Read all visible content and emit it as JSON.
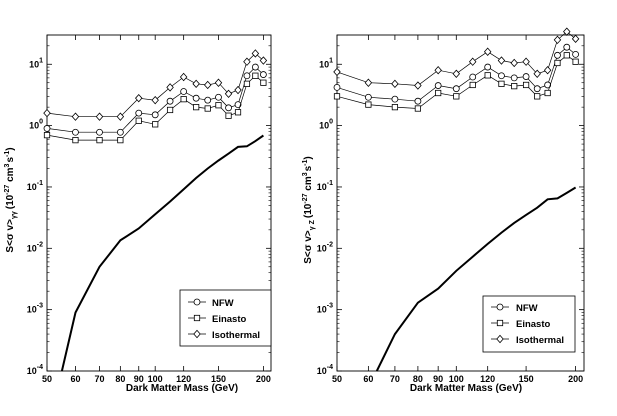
{
  "chart_data": [
    {
      "type": "line",
      "title": "",
      "xlabel": "Dark Matter Mass (GeV)",
      "ylabel": "S<σ v>γγ (10^-27 cm^3 s^-1)",
      "ylabel_parts": {
        "pre": "S",
        "sym": "<σ v>",
        "sub": "γγ",
        "unit_a": "(10",
        "unit_exp1": "-27",
        "unit_b": " cm",
        "unit_exp2": "3",
        "unit_c": "s",
        "unit_exp3": "-1",
        "unit_d": ")"
      },
      "x_scale": "log",
      "y_scale": "log",
      "xlim": [
        50,
        210
      ],
      "ylim": [
        0.0001,
        30
      ],
      "x_ticks": [
        50,
        60,
        70,
        80,
        90,
        100,
        120,
        150,
        200
      ],
      "x_tick_labels": [
        "50",
        "60",
        "70",
        "80",
        "90",
        "100",
        "120",
        "150",
        "200"
      ],
      "y_ticks": [
        0.0001,
        0.001,
        0.01,
        0.1,
        1,
        10
      ],
      "y_tick_exponents": [
        "-4",
        "-3",
        "-2",
        "-1",
        "0",
        "1"
      ],
      "legend": {
        "position": "bottom-right",
        "entries": [
          {
            "label": "NFW",
            "marker": "circle"
          },
          {
            "label": "Einasto",
            "marker": "square"
          },
          {
            "label": "Isothermal",
            "marker": "diamond"
          }
        ]
      },
      "series": [
        {
          "name": "Sensitivity",
          "marker": "none",
          "x": [
            55,
            60,
            70,
            80,
            90,
            100,
            110,
            120,
            130,
            140,
            150,
            160,
            170,
            180,
            190,
            200
          ],
          "y": [
            0.0001,
            0.0009,
            0.005,
            0.0135,
            0.021,
            0.036,
            0.058,
            0.092,
            0.14,
            0.2,
            0.27,
            0.35,
            0.45,
            0.46,
            0.56,
            0.69
          ]
        },
        {
          "name": "Isothermal",
          "marker": "diamond",
          "x": [
            50,
            60,
            70,
            80,
            90,
            100,
            110,
            120,
            130,
            140,
            150,
            160,
            170,
            180,
            190,
            200
          ],
          "y": [
            1.6,
            1.4,
            1.4,
            1.4,
            2.8,
            2.6,
            4.2,
            6.2,
            4.8,
            4.6,
            5.0,
            3.3,
            3.8,
            11.0,
            15.0,
            11.5
          ]
        },
        {
          "name": "NFW",
          "marker": "circle",
          "x": [
            50,
            60,
            70,
            80,
            90,
            100,
            110,
            120,
            130,
            140,
            150,
            160,
            170,
            180,
            190,
            200
          ],
          "y": [
            0.9,
            0.78,
            0.78,
            0.78,
            1.6,
            1.5,
            2.5,
            3.6,
            2.8,
            2.6,
            2.9,
            1.95,
            2.2,
            6.5,
            9.0,
            6.8
          ]
        },
        {
          "name": "Einasto",
          "marker": "square",
          "x": [
            50,
            60,
            70,
            80,
            90,
            100,
            110,
            120,
            130,
            140,
            150,
            160,
            170,
            180,
            190,
            200
          ],
          "y": [
            0.7,
            0.58,
            0.58,
            0.58,
            1.2,
            1.05,
            1.8,
            2.7,
            2.0,
            1.9,
            2.15,
            1.45,
            1.65,
            4.8,
            6.5,
            5.0
          ]
        }
      ]
    },
    {
      "type": "line",
      "title": "",
      "xlabel": "Dark Matter Mass (GeV)",
      "ylabel": "S<σ v>γZ (10^-27 cm^3 s^-1)",
      "ylabel_parts": {
        "pre": "S",
        "sym": "<σ v>",
        "sub": "γ Z",
        "unit_a": "(10",
        "unit_exp1": "-27",
        "unit_b": " cm",
        "unit_exp2": "3",
        "unit_c": "s",
        "unit_exp3": "-1",
        "unit_d": ")"
      },
      "x_scale": "log",
      "y_scale": "log",
      "xlim": [
        50,
        210
      ],
      "ylim": [
        0.0001,
        30
      ],
      "x_ticks": [
        50,
        60,
        70,
        80,
        90,
        100,
        120,
        150,
        200
      ],
      "x_tick_labels": [
        "50",
        "60",
        "70",
        "80",
        "90",
        "100",
        "120",
        "150",
        "200"
      ],
      "y_ticks": [
        0.0001,
        0.001,
        0.01,
        0.1,
        1,
        10
      ],
      "y_tick_exponents": [
        "-4",
        "-3",
        "-2",
        "-1",
        "0",
        "1"
      ],
      "legend": {
        "position": "bottom-right",
        "entries": [
          {
            "label": "NFW",
            "marker": "circle"
          },
          {
            "label": "Einasto",
            "marker": "square"
          },
          {
            "label": "Isothermal",
            "marker": "diamond"
          }
        ]
      },
      "series": [
        {
          "name": "Sensitivity",
          "marker": "none",
          "x": [
            63,
            70,
            80,
            90,
            100,
            110,
            120,
            130,
            140,
            150,
            160,
            170,
            180,
            190,
            200
          ],
          "y": [
            0.0001,
            0.0004,
            0.0013,
            0.0022,
            0.0043,
            0.0073,
            0.0118,
            0.018,
            0.026,
            0.035,
            0.046,
            0.063,
            0.065,
            0.08,
            0.098
          ]
        },
        {
          "name": "Isothermal",
          "marker": "diamond",
          "x": [
            50,
            60,
            70,
            80,
            90,
            100,
            110,
            120,
            130,
            140,
            150,
            160,
            170,
            180,
            190,
            200
          ],
          "y": [
            7.5,
            5.0,
            4.8,
            4.5,
            8.0,
            7.0,
            11.0,
            16.0,
            11.5,
            10.5,
            11.0,
            7.0,
            8.0,
            25.0,
            34.0,
            26.0
          ]
        },
        {
          "name": "NFW",
          "marker": "circle",
          "x": [
            50,
            60,
            70,
            80,
            90,
            100,
            110,
            120,
            130,
            140,
            150,
            160,
            170,
            180,
            190,
            200
          ],
          "y": [
            4.2,
            2.9,
            2.7,
            2.5,
            4.5,
            4.0,
            6.2,
            9.0,
            6.5,
            6.0,
            6.3,
            4.0,
            4.6,
            14.0,
            19.0,
            14.5
          ]
        },
        {
          "name": "Einasto",
          "marker": "square",
          "x": [
            50,
            60,
            70,
            80,
            90,
            100,
            110,
            120,
            130,
            140,
            150,
            160,
            170,
            180,
            190,
            200
          ],
          "y": [
            3.0,
            2.2,
            2.0,
            1.9,
            3.4,
            3.0,
            4.6,
            6.6,
            4.8,
            4.4,
            4.6,
            3.0,
            3.4,
            10.5,
            14.0,
            11.0
          ]
        }
      ]
    }
  ]
}
